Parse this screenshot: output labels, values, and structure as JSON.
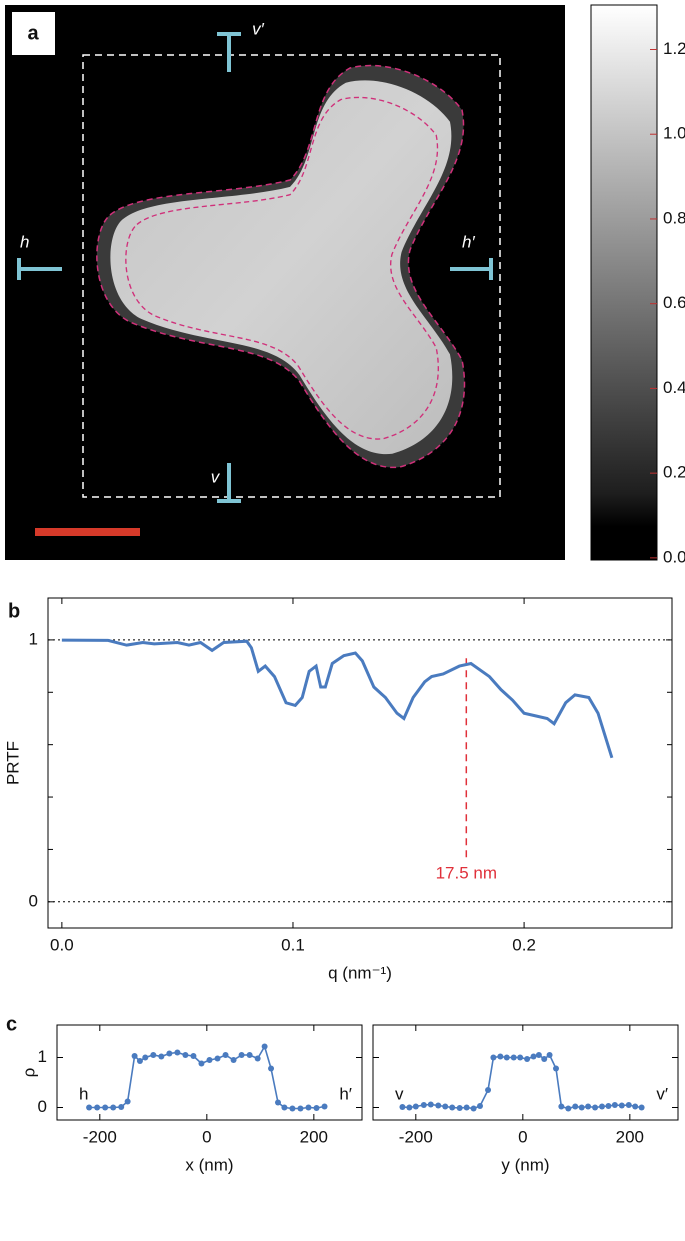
{
  "chart_data": [
    {
      "type": "image",
      "label": "a",
      "markers": [
        "h",
        "h′",
        "v",
        "v′"
      ],
      "colorbar_lim": [
        -0.005,
        1.305
      ],
      "colorbar_ticks": [
        {
          "value": 0,
          "label": "0.0"
        },
        {
          "value": 0.2,
          "label": "0.2"
        },
        {
          "value": 0.4,
          "label": "0.4"
        },
        {
          "value": 0.6,
          "label": "0.6"
        },
        {
          "value": 0.8,
          "label": "0.8"
        },
        {
          "value": 1,
          "label": "1.0"
        },
        {
          "value": 1.2,
          "label": "1.2"
        }
      ]
    },
    {
      "type": "line",
      "label": "b",
      "ylabel": "PRTF",
      "xlabel": "q (nm⁻¹)",
      "xlim": [
        -0.006,
        0.264
      ],
      "ylim": [
        -0.1,
        1.16
      ],
      "xticks": [
        {
          "value": 0,
          "label": "0.0"
        },
        0.1,
        0.2
      ],
      "yticks": [
        0,
        1
      ],
      "yminorticks": [
        0.2,
        0.4,
        0.6,
        0.8
      ],
      "hlines": [
        0,
        1
      ],
      "vline": 0.175,
      "annotation": "17.5 nm",
      "annotation_color": "#e0303a",
      "series": [
        {
          "color": "#4a7bbf",
          "x": [
            0,
            0.02,
            0.028,
            0.035,
            0.04,
            0.05,
            0.055,
            0.06,
            0.065,
            0.07,
            0.08,
            0.082,
            0.085,
            0.088,
            0.092,
            0.097,
            0.101,
            0.104,
            0.107,
            0.11,
            0.112,
            0.114,
            0.117,
            0.122,
            0.127,
            0.13,
            0.135,
            0.14,
            0.145,
            0.148,
            0.152,
            0.157,
            0.16,
            0.165,
            0.172,
            0.177,
            0.185,
            0.19,
            0.195,
            0.2,
            0.205,
            0.21,
            0.213,
            0.218,
            0.222,
            0.228,
            0.232,
            0.238
          ],
          "values": [
            0.999,
            0.998,
            0.98,
            0.99,
            0.985,
            0.99,
            0.98,
            0.99,
            0.96,
            0.99,
            0.995,
            0.97,
            0.88,
            0.9,
            0.86,
            0.76,
            0.75,
            0.78,
            0.88,
            0.9,
            0.82,
            0.82,
            0.91,
            0.94,
            0.95,
            0.92,
            0.82,
            0.78,
            0.72,
            0.7,
            0.78,
            0.84,
            0.86,
            0.87,
            0.9,
            0.91,
            0.86,
            0.81,
            0.77,
            0.72,
            0.71,
            0.7,
            0.68,
            0.76,
            0.79,
            0.78,
            0.72,
            0.55
          ]
        }
      ]
    },
    {
      "type": "line",
      "label": "c",
      "ylabel": "ρ",
      "xlabel": "x (nm)",
      "corner_labels": [
        "h",
        "h′"
      ],
      "xlim": [
        -280,
        290
      ],
      "ylim": [
        -0.25,
        1.65
      ],
      "xticks": [
        -200,
        0,
        200
      ],
      "yticks": [
        0,
        1
      ],
      "show_ytick_labels": true,
      "markers": true,
      "series": [
        {
          "color": "#4a7bbf",
          "x": [
            -220,
            -205,
            -190,
            -175,
            -160,
            -148,
            -135,
            -125,
            -115,
            -100,
            -85,
            -70,
            -55,
            -40,
            -25,
            -10,
            5,
            20,
            35,
            50,
            65,
            80,
            95,
            108,
            120,
            133,
            145,
            160,
            175,
            190,
            205,
            220
          ],
          "values": [
            0,
            0,
            0,
            0,
            0.01,
            0.12,
            1.03,
            0.93,
            1.0,
            1.05,
            1.02,
            1.08,
            1.1,
            1.05,
            1.03,
            0.88,
            0.95,
            0.98,
            1.05,
            0.95,
            1.05,
            1.05,
            0.98,
            1.22,
            0.78,
            0.1,
            0,
            -0.02,
            -0.02,
            0,
            -0.01,
            0.02
          ]
        }
      ]
    },
    {
      "type": "line",
      "xlabel": "y (nm)",
      "corner_labels": [
        "v",
        "v′"
      ],
      "xlim": [
        -280,
        290
      ],
      "ylim": [
        -0.25,
        1.65
      ],
      "xticks": [
        -200,
        0,
        200
      ],
      "yticks": [
        0,
        1
      ],
      "show_ytick_labels": false,
      "markers": true,
      "series": [
        {
          "color": "#4a7bbf",
          "x": [
            -225,
            -212,
            -200,
            -185,
            -172,
            -158,
            -145,
            -132,
            -118,
            -105,
            -92,
            -80,
            -65,
            -55,
            -42,
            -30,
            -17,
            -5,
            8,
            20,
            30,
            40,
            50,
            62,
            72,
            85,
            98,
            110,
            122,
            135,
            148,
            160,
            172,
            185,
            198,
            210,
            222
          ],
          "values": [
            0.01,
            0,
            0.02,
            0.05,
            0.06,
            0.04,
            0.02,
            0,
            -0.01,
            0,
            -0.02,
            0.03,
            0.35,
            1.0,
            1.02,
            1.0,
            1.0,
            1.0,
            0.97,
            1.02,
            1.05,
            0.97,
            1.05,
            0.78,
            0.02,
            -0.02,
            0.02,
            0,
            0.02,
            0,
            0.02,
            0.03,
            0.05,
            0.04,
            0.05,
            0.02,
            0
          ]
        }
      ]
    }
  ]
}
